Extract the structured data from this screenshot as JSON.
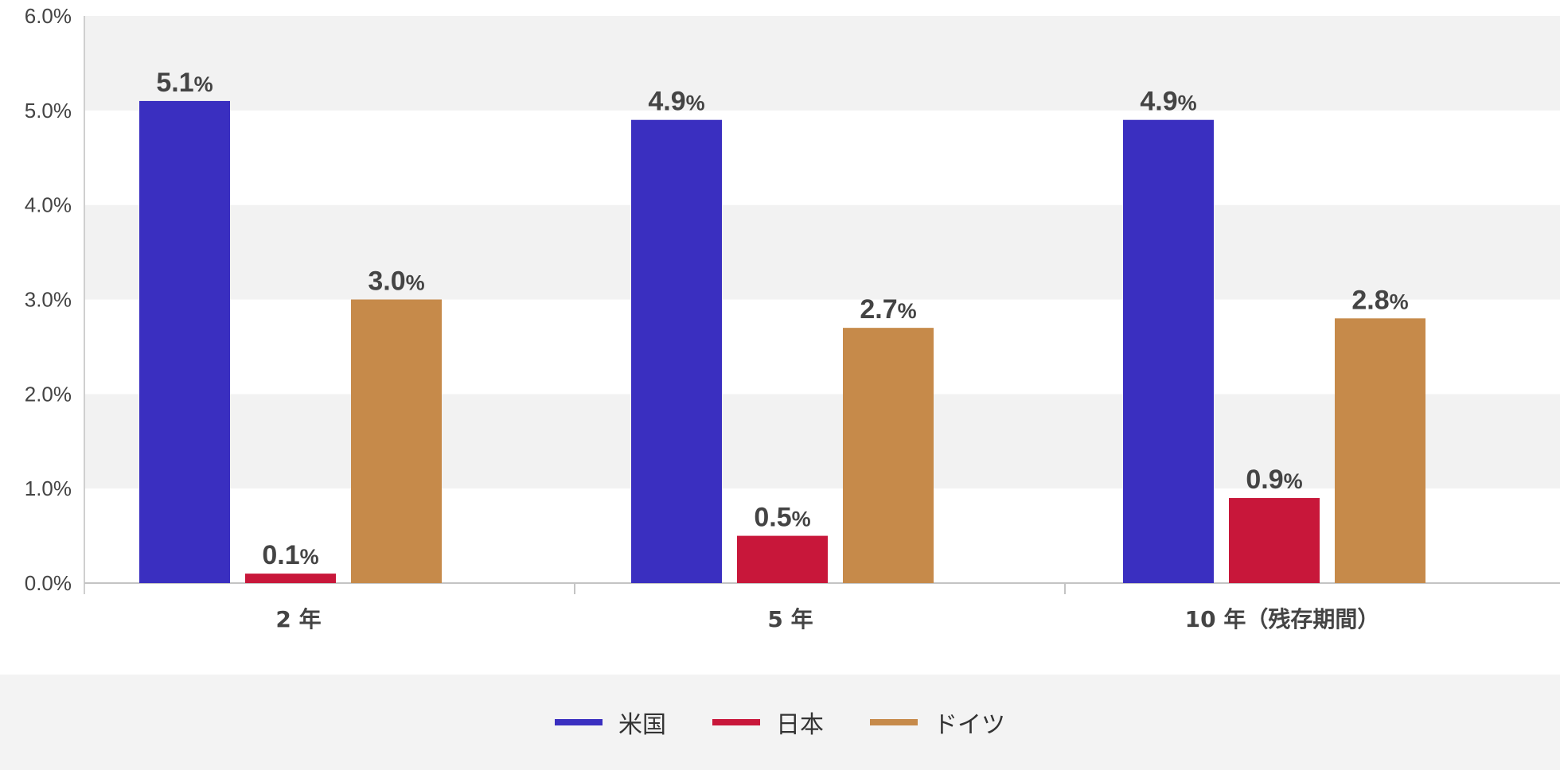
{
  "chart_data": {
    "type": "bar",
    "categories": [
      "2 年",
      "5 年",
      "10 年（残存期間）"
    ],
    "series": [
      {
        "name": "米国",
        "color": "#3a2fc0",
        "values": [
          5.1,
          4.9,
          4.9
        ]
      },
      {
        "name": "日本",
        "color": "#c8173a",
        "values": [
          0.1,
          0.5,
          0.9
        ]
      },
      {
        "name": "ドイツ",
        "color": "#c68a4a",
        "values": [
          3.0,
          2.7,
          2.8
        ]
      }
    ],
    "data_label_suffix": "%",
    "yticks": [
      "0.0%",
      "1.0%",
      "2.0%",
      "3.0%",
      "4.0%",
      "5.0%",
      "6.0%"
    ],
    "ylim": [
      0,
      6
    ],
    "grid": "alternating horizontal bands",
    "legend_placement": "bottom-center"
  }
}
